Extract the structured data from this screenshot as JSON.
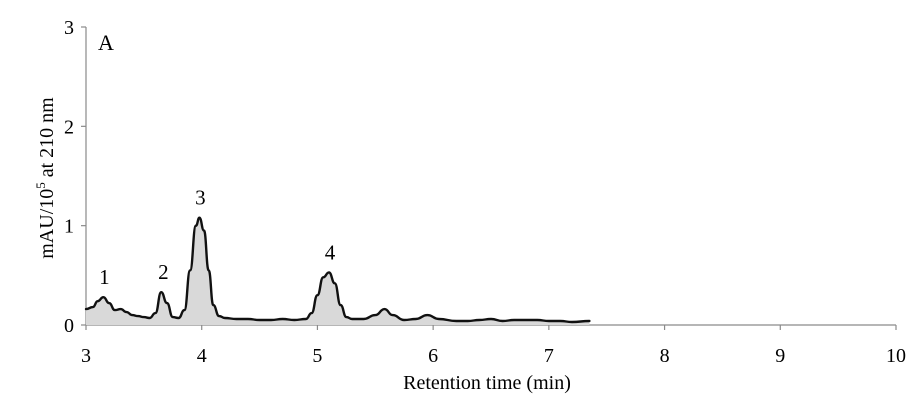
{
  "chart_data": {
    "type": "line",
    "panel_label": "A",
    "xlabel": "Retention time (min)",
    "ylabel_main": "mAU/10",
    "ylabel_sup": "5",
    "ylabel_tail": " at 210 nm",
    "xlim": [
      3,
      10
    ],
    "ylim": [
      0,
      3
    ],
    "xticks": [
      3,
      4,
      5,
      6,
      7,
      8,
      9,
      10
    ],
    "yticks": [
      0,
      1,
      2,
      3
    ],
    "grid": false,
    "series": [
      {
        "x": [
          3.0,
          3.06,
          3.1,
          3.15,
          3.2,
          3.25,
          3.3,
          3.35,
          3.4,
          3.45,
          3.5,
          3.55,
          3.6,
          3.65,
          3.7,
          3.75,
          3.8,
          3.85,
          3.9,
          3.95,
          3.98,
          4.02,
          4.06,
          4.1,
          4.15,
          4.2,
          4.3,
          4.4,
          4.5,
          4.6,
          4.7,
          4.8,
          4.9,
          4.95,
          5.0,
          5.05,
          5.1,
          5.15,
          5.2,
          5.25,
          5.3,
          5.4,
          5.5,
          5.58,
          5.65,
          5.75,
          5.85,
          5.95,
          6.05,
          6.2,
          6.3,
          6.4,
          6.5,
          6.6,
          6.7,
          6.8,
          6.9,
          7.0,
          7.1,
          7.2,
          7.35
        ],
        "y": [
          0.16,
          0.18,
          0.24,
          0.28,
          0.22,
          0.15,
          0.16,
          0.13,
          0.1,
          0.09,
          0.08,
          0.07,
          0.12,
          0.33,
          0.22,
          0.08,
          0.07,
          0.15,
          0.55,
          1.0,
          1.08,
          0.95,
          0.55,
          0.2,
          0.09,
          0.07,
          0.06,
          0.06,
          0.05,
          0.05,
          0.06,
          0.05,
          0.06,
          0.12,
          0.3,
          0.48,
          0.53,
          0.42,
          0.2,
          0.08,
          0.06,
          0.06,
          0.1,
          0.16,
          0.1,
          0.05,
          0.06,
          0.1,
          0.06,
          0.04,
          0.04,
          0.05,
          0.06,
          0.04,
          0.05,
          0.05,
          0.05,
          0.04,
          0.04,
          0.03,
          0.04
        ]
      }
    ],
    "peaks": [
      {
        "label": "1",
        "x": 3.15,
        "y": 0.28
      },
      {
        "label": "2",
        "x": 3.66,
        "y": 0.33
      },
      {
        "label": "3",
        "x": 3.98,
        "y": 1.08
      },
      {
        "label": "4",
        "x": 5.1,
        "y": 0.53
      }
    ]
  }
}
